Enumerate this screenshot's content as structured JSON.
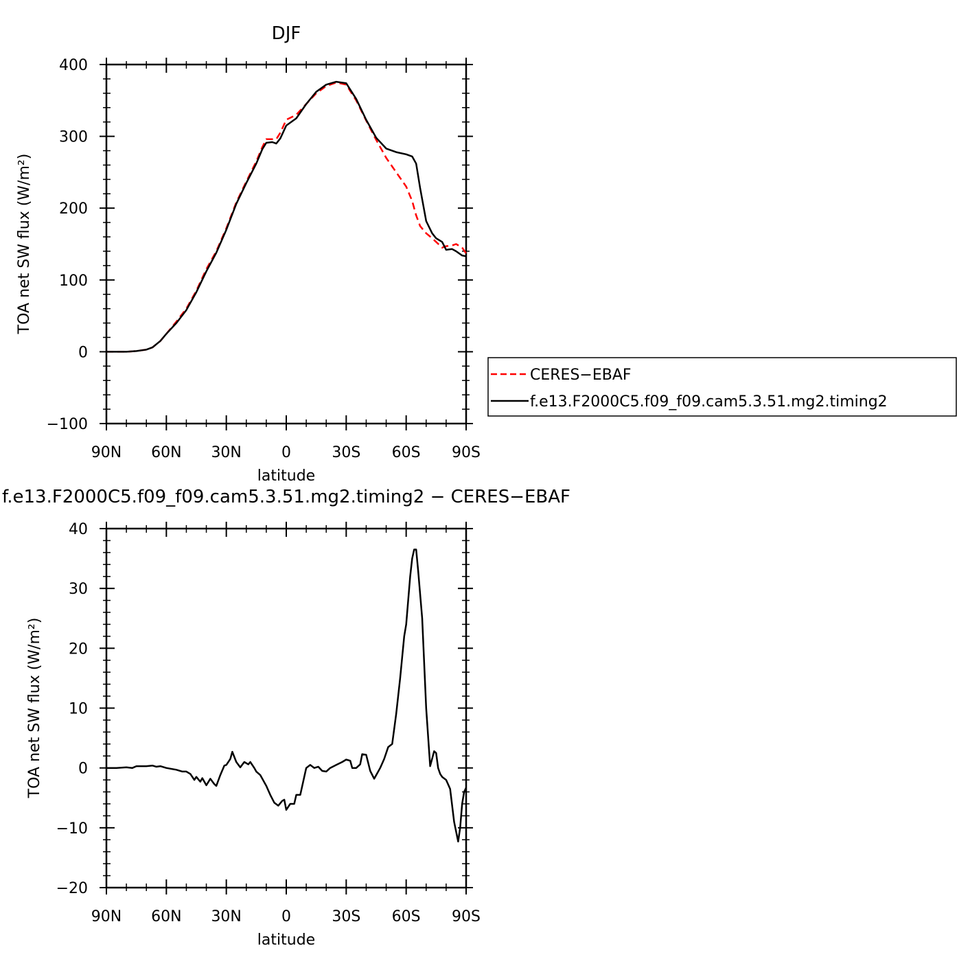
{
  "chart_data": [
    {
      "type": "line",
      "title": "DJF",
      "xlabel": "latitude",
      "ylabel": "TOA net SW flux (W/m²)",
      "xlim": [
        -90,
        90
      ],
      "ylim": [
        -100,
        400
      ],
      "x_tick_values": [
        -90,
        -60,
        -30,
        0,
        30,
        60,
        90
      ],
      "x_tick_labels": [
        "90N",
        "60N",
        "30N",
        "0",
        "30S",
        "60S",
        "90S"
      ],
      "y_tick_values": [
        -100,
        0,
        100,
        200,
        300,
        400
      ],
      "y_tick_labels": [
        "−100",
        "0",
        "100",
        "200",
        "300",
        "400"
      ],
      "legend_position": "right",
      "series": [
        {
          "name": "CERES−EBAF",
          "color": "#ff0000",
          "dash": "dashed",
          "x": [
            -90,
            -85,
            -80,
            -75,
            -70,
            -67,
            -63,
            -60,
            -55,
            -50,
            -45,
            -40,
            -35,
            -30,
            -25,
            -20,
            -15,
            -12,
            -10,
            -7,
            -5,
            -3,
            0,
            5,
            10,
            15,
            20,
            25,
            30,
            35,
            40,
            45,
            50,
            55,
            60,
            63,
            65,
            67,
            70,
            73,
            75,
            78,
            80,
            83,
            85,
            88,
            90
          ],
          "values": [
            0,
            0,
            0,
            1,
            3,
            6,
            15,
            25,
            42,
            60,
            85,
            115,
            140,
            172,
            208,
            237,
            265,
            285,
            296,
            296,
            296,
            305,
            323,
            330,
            345,
            360,
            370,
            375,
            372,
            350,
            322,
            295,
            270,
            250,
            230,
            210,
            190,
            175,
            165,
            158,
            153,
            145,
            147,
            148,
            150,
            145,
            137
          ]
        },
        {
          "name": "f.e13.F2000C5.f09_f09.cam5.3.51.mg2.timing2",
          "color": "#000000",
          "dash": "solid",
          "x": [
            -90,
            -85,
            -80,
            -75,
            -70,
            -67,
            -63,
            -60,
            -55,
            -50,
            -45,
            -40,
            -35,
            -30,
            -25,
            -20,
            -15,
            -12,
            -10,
            -7,
            -5,
            -3,
            0,
            5,
            10,
            15,
            20,
            25,
            30,
            35,
            40,
            45,
            50,
            55,
            60,
            63,
            65,
            67,
            70,
            73,
            75,
            78,
            80,
            83,
            85,
            88,
            90
          ],
          "values": [
            0,
            0,
            0,
            1,
            3,
            6,
            15,
            25,
            40,
            58,
            83,
            112,
            138,
            170,
            206,
            235,
            262,
            282,
            291,
            292,
            290,
            297,
            315,
            325,
            345,
            362,
            372,
            376,
            374,
            352,
            323,
            298,
            283,
            278,
            275,
            272,
            262,
            228,
            182,
            165,
            158,
            153,
            142,
            143,
            140,
            134,
            133
          ]
        }
      ]
    },
    {
      "type": "line",
      "title": "f.e13.F2000C5.f09_f09.cam5.3.51.mg2.timing2 − CERES−EBAF",
      "xlabel": "latitude",
      "ylabel": "TOA net SW flux (W/m²)",
      "xlim": [
        -90,
        90
      ],
      "ylim": [
        -20,
        40
      ],
      "x_tick_values": [
        -90,
        -60,
        -30,
        0,
        30,
        60,
        90
      ],
      "x_tick_labels": [
        "90N",
        "60N",
        "30N",
        "0",
        "30S",
        "60S",
        "90S"
      ],
      "y_tick_values": [
        -20,
        -10,
        0,
        10,
        20,
        30,
        40
      ],
      "y_tick_labels": [
        "−20",
        "−10",
        "0",
        "10",
        "20",
        "30",
        "40"
      ],
      "series": [
        {
          "color": "#000000",
          "dash": "solid",
          "x": [
            -90,
            -85,
            -80,
            -77,
            -75,
            -70,
            -67,
            -65,
            -63,
            -60,
            -55,
            -52,
            -50,
            -48,
            -46,
            -45,
            -43,
            -42,
            -40,
            -38,
            -36,
            -35,
            -33,
            -31,
            -30,
            -28,
            -27,
            -25,
            -23,
            -21,
            -19,
            -18,
            -16,
            -15,
            -13,
            -10,
            -8,
            -6,
            -4,
            -2,
            -1,
            0,
            2,
            4,
            5,
            7,
            9,
            10,
            12,
            14,
            16,
            18,
            20,
            22,
            25,
            28,
            30,
            32,
            33,
            35,
            37,
            38,
            40,
            42,
            44,
            45,
            47,
            49,
            51,
            53,
            55,
            57,
            59,
            60,
            62,
            63,
            64,
            65,
            66,
            68,
            70,
            72,
            74,
            75,
            76,
            77,
            78,
            80,
            82,
            84,
            86,
            87,
            88,
            89,
            90
          ],
          "values": [
            0,
            0,
            0.1,
            0,
            0.3,
            0.3,
            0.4,
            0.2,
            0.3,
            0,
            -0.3,
            -0.6,
            -0.6,
            -1.0,
            -2.0,
            -1.5,
            -2.3,
            -1.7,
            -2.9,
            -1.8,
            -2.7,
            -3.0,
            -1.2,
            0.4,
            0.5,
            1.5,
            2.7,
            1.0,
            0.1,
            1.0,
            0.6,
            1.0,
            0.0,
            -0.6,
            -1.2,
            -3.0,
            -4.5,
            -5.8,
            -6.3,
            -5.5,
            -5.3,
            -7.0,
            -6.0,
            -6.0,
            -4.5,
            -4.5,
            -1.5,
            0.0,
            0.5,
            0.0,
            0.2,
            -0.5,
            -0.6,
            0.0,
            0.5,
            1.0,
            1.4,
            1.2,
            0.0,
            0.0,
            0.6,
            2.3,
            2.2,
            -0.5,
            -1.8,
            -1.2,
            0.0,
            1.5,
            3.5,
            4.0,
            9.0,
            15.0,
            22.0,
            24.0,
            32.0,
            35.0,
            36.5,
            36.5,
            33.0,
            25.0,
            10.0,
            0.3,
            2.8,
            2.5,
            0.0,
            -1.0,
            -1.5,
            -2.0,
            -3.5,
            -9.0,
            -12.3,
            -10.0,
            -6.0,
            -4.0,
            -3.3
          ]
        }
      ]
    }
  ]
}
